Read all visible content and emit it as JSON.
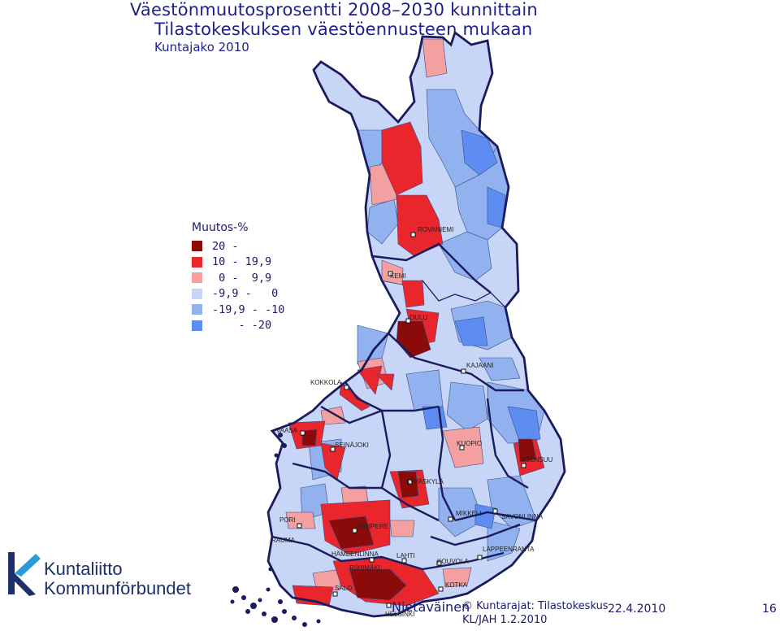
{
  "title": {
    "line1": "Väestönmuutosprosentti 2008–2030 kunnittain",
    "line2": "Tilastokeskuksen väestöennusteen mukaan",
    "subtitle": "Kuntajako 2010"
  },
  "legend": {
    "title": "Muutos-%",
    "items": [
      {
        "range": "20 -      ",
        "color": "#8b0a0a"
      },
      {
        "range": "10 - 19,9",
        "color": "#e8262b"
      },
      {
        "range": " 0 -  9,9",
        "color": "#f4a0a0"
      },
      {
        "range": "-9,9 -   0",
        "color": "#c7d6f7"
      },
      {
        "range": "-19,9 - -10",
        "color": "#91b2ef"
      },
      {
        "range": "    - -20",
        "color": "#5d8df0"
      }
    ]
  },
  "cities": [
    {
      "name": "ROVANIEMI"
    },
    {
      "name": "KEMI"
    },
    {
      "name": "OULU"
    },
    {
      "name": "KAJAANI"
    },
    {
      "name": "KOKKOLA"
    },
    {
      "name": "VAASA"
    },
    {
      "name": "SEINÄJOKI"
    },
    {
      "name": "KUOPIO"
    },
    {
      "name": "JOENSUU"
    },
    {
      "name": "JYVÄSKYLÄ"
    },
    {
      "name": "MIKKELI"
    },
    {
      "name": "SAVONLINNA"
    },
    {
      "name": "PORI"
    },
    {
      "name": "RAUMA"
    },
    {
      "name": "TAMPERE"
    },
    {
      "name": "HÄMEENLINNA"
    },
    {
      "name": "LAHTI"
    },
    {
      "name": "RIIHIMÄKI"
    },
    {
      "name": "KOUVOLA"
    },
    {
      "name": "LAPPEENRANTA"
    },
    {
      "name": "KOTKA"
    },
    {
      "name": "SALO"
    },
    {
      "name": "HELSINKI"
    }
  ],
  "logo": {
    "line1": "Kuntaliitto",
    "line2": "Kommunförbundet"
  },
  "footer": {
    "author": "Nietäväinen",
    "copyright_line1": "© Kuntarajat: Tilastokeskus",
    "copyright_line2": "KL/JAH 1.2.2010",
    "date": "22.4.2010",
    "page": "16"
  }
}
